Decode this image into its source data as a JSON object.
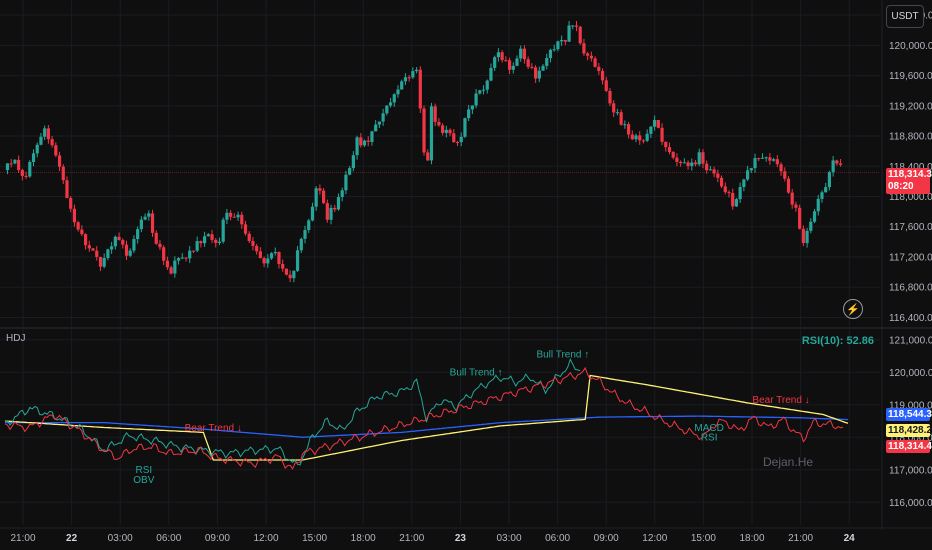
{
  "currency_button": "USDT",
  "indicator_name": "HDJ",
  "rsi_readout": "RSI(10): 52.86",
  "watermark": "Dejan.He",
  "bolt_icon": "lightning-bolt-icon",
  "price_tags": {
    "last_price": "118,314.3",
    "countdown": "08:20",
    "blue": "118,544.3",
    "yellow": "118,428.2",
    "red": "118,314.4"
  },
  "colors": {
    "up": "#26a69a",
    "down": "#f23645",
    "ma_blue": "#2962ff",
    "ma_yellow": "#fff176",
    "trend_green": "#26a69a",
    "trend_red": "#f23645"
  },
  "chart_data": [
    {
      "type": "candlestick",
      "title": "",
      "y_ticks": [
        "120,400.0",
        "120,000.0",
        "119,600.0",
        "119,200.0",
        "118,800.0",
        "118,400.0",
        "118,000.0",
        "117,600.0",
        "117,200.0",
        "116,800.0",
        "116,400.0"
      ],
      "ylim": [
        116300,
        120600
      ],
      "x_ticks": [
        "21:00",
        "22",
        "03:00",
        "06:00",
        "09:00",
        "12:00",
        "15:00",
        "18:00",
        "21:00",
        "23",
        "03:00",
        "06:00",
        "09:00",
        "12:00",
        "15:00",
        "18:00",
        "21:00",
        "24"
      ],
      "last_price": 118314.3,
      "close_path": [
        [
          0,
          118350
        ],
        [
          4,
          118500
        ],
        [
          8,
          118250
        ],
        [
          12,
          118550
        ],
        [
          16,
          118850
        ],
        [
          20,
          118650
        ],
        [
          24,
          118100
        ],
        [
          28,
          117700
        ],
        [
          32,
          117400
        ],
        [
          36,
          117300
        ],
        [
          38,
          117000
        ],
        [
          42,
          117350
        ],
        [
          46,
          117450
        ],
        [
          50,
          117200
        ],
        [
          54,
          117600
        ],
        [
          58,
          117800
        ],
        [
          60,
          117500
        ],
        [
          64,
          117200
        ],
        [
          66,
          116950
        ],
        [
          70,
          117200
        ],
        [
          74,
          117250
        ],
        [
          78,
          117400
        ],
        [
          82,
          117550
        ],
        [
          86,
          117350
        ],
        [
          88,
          117700
        ],
        [
          92,
          117800
        ],
        [
          96,
          117650
        ],
        [
          98,
          117450
        ],
        [
          102,
          117300
        ],
        [
          104,
          117150
        ],
        [
          108,
          117250
        ],
        [
          112,
          117100
        ],
        [
          114,
          116850
        ],
        [
          116,
          117000
        ],
        [
          118,
          117300
        ],
        [
          122,
          117600
        ],
        [
          126,
          118250
        ],
        [
          130,
          117700
        ],
        [
          134,
          117950
        ],
        [
          138,
          118300
        ],
        [
          142,
          118750
        ],
        [
          146,
          118700
        ],
        [
          150,
          119000
        ],
        [
          154,
          119200
        ],
        [
          158,
          119400
        ],
        [
          162,
          119550
        ],
        [
          166,
          119650
        ],
        [
          170,
          118200
        ],
        [
          172,
          119150
        ],
        [
          176,
          118850
        ],
        [
          180,
          118800
        ],
        [
          182,
          118650
        ],
        [
          186,
          119050
        ],
        [
          190,
          119350
        ],
        [
          194,
          119500
        ],
        [
          198,
          119950
        ],
        [
          202,
          119800
        ],
        [
          204,
          119650
        ],
        [
          208,
          119900
        ],
        [
          212,
          119700
        ],
        [
          214,
          119550
        ],
        [
          218,
          119850
        ],
        [
          222,
          120000
        ],
        [
          226,
          120100
        ],
        [
          228,
          120300
        ],
        [
          230,
          120250
        ],
        [
          232,
          120000
        ],
        [
          236,
          119800
        ],
        [
          240,
          119600
        ],
        [
          244,
          119250
        ],
        [
          248,
          119000
        ],
        [
          252,
          118850
        ],
        [
          256,
          118700
        ],
        [
          260,
          118900
        ],
        [
          262,
          119000
        ],
        [
          264,
          118800
        ],
        [
          266,
          118650
        ],
        [
          270,
          118500
        ],
        [
          274,
          118450
        ],
        [
          278,
          118400
        ],
        [
          280,
          118600
        ],
        [
          282,
          118400
        ],
        [
          286,
          118300
        ],
        [
          290,
          118100
        ],
        [
          294,
          117900
        ],
        [
          298,
          118250
        ],
        [
          302,
          118450
        ],
        [
          306,
          118550
        ],
        [
          310,
          118500
        ],
        [
          314,
          118300
        ],
        [
          318,
          117900
        ],
        [
          320,
          117700
        ],
        [
          322,
          117350
        ],
        [
          324,
          117600
        ],
        [
          328,
          117950
        ],
        [
          332,
          118200
        ],
        [
          334,
          118500
        ],
        [
          338,
          118314
        ]
      ]
    },
    {
      "type": "line",
      "title": "HDJ",
      "y_ticks": [
        "121,000.0",
        "120,000.0",
        "119,000.0",
        "118,000.0",
        "117,000.0",
        "116,000.0"
      ],
      "ylim": [
        115300,
        121300
      ],
      "x_ticks": [
        "21:00",
        "22",
        "03:00",
        "06:00",
        "09:00",
        "12:00",
        "15:00",
        "18:00",
        "21:00",
        "23",
        "03:00",
        "06:00",
        "09:00",
        "12:00",
        "15:00",
        "18:00",
        "21:00",
        "24"
      ],
      "series": [
        {
          "color": "#2962ff",
          "values": [
            [
              0,
              118450
            ],
            [
              40,
              118450
            ],
            [
              80,
              118250
            ],
            [
              120,
              118000
            ],
            [
              160,
              118150
            ],
            [
              200,
              118450
            ],
            [
              240,
              118620
            ],
            [
              280,
              118650
            ],
            [
              320,
              118600
            ],
            [
              340,
              118544
            ]
          ]
        },
        {
          "color": "#fff176",
          "values": [
            [
              0,
              118500
            ],
            [
              40,
              118300
            ],
            [
              80,
              118150
            ],
            [
              84,
              117300
            ],
            [
              120,
              117300
            ],
            [
              160,
              117900
            ],
            [
              200,
              118350
            ],
            [
              234,
              118550
            ],
            [
              236,
              119900
            ],
            [
              260,
              119600
            ],
            [
              300,
              119050
            ],
            [
              330,
              118700
            ],
            [
              340,
              118428
            ]
          ]
        },
        {
          "color": "#26a69a",
          "values": [
            [
              0,
              118400
            ],
            [
              10,
              118900
            ],
            [
              20,
              118650
            ],
            [
              30,
              118300
            ],
            [
              40,
              117600
            ],
            [
              50,
              118050
            ],
            [
              60,
              117900
            ],
            [
              70,
              117700
            ],
            [
              80,
              117600
            ],
            [
              90,
              117500
            ],
            [
              100,
              117600
            ],
            [
              110,
              117650
            ],
            [
              118,
              117100
            ],
            [
              124,
              118000
            ],
            [
              130,
              118500
            ],
            [
              136,
              118200
            ],
            [
              142,
              118800
            ],
            [
              150,
              119250
            ],
            [
              160,
              119400
            ],
            [
              166,
              119700
            ],
            [
              170,
              118600
            ],
            [
              176,
              119150
            ],
            [
              182,
              118950
            ],
            [
              188,
              119350
            ],
            [
              194,
              119650
            ],
            [
              200,
              119850
            ],
            [
              206,
              119700
            ],
            [
              212,
              119850
            ],
            [
              218,
              119450
            ],
            [
              224,
              119950
            ],
            [
              228,
              120250
            ],
            [
              232,
              120050
            ]
          ]
        },
        {
          "color": "#f23645",
          "values": [
            [
              0,
              118400
            ],
            [
              10,
              118300
            ],
            [
              20,
              118700
            ],
            [
              30,
              118200
            ],
            [
              40,
              117600
            ],
            [
              46,
              117350
            ],
            [
              50,
              117600
            ],
            [
              56,
              117700
            ],
            [
              60,
              117700
            ],
            [
              66,
              117500
            ],
            [
              72,
              117550
            ],
            [
              78,
              117600
            ],
            [
              84,
              117400
            ],
            [
              90,
              117300
            ],
            [
              100,
              117200
            ],
            [
              110,
              117400
            ],
            [
              116,
              117000
            ],
            [
              120,
              117500
            ],
            [
              234,
              120000
            ],
            [
              240,
              119700
            ],
            [
              246,
              119300
            ],
            [
              252,
              119000
            ],
            [
              258,
              118800
            ],
            [
              264,
              118550
            ],
            [
              270,
              118350
            ],
            [
              276,
              118150
            ],
            [
              282,
              118000
            ],
            [
              286,
              118400
            ],
            [
              290,
              118500
            ],
            [
              296,
              118200
            ],
            [
              302,
              118600
            ],
            [
              308,
              118300
            ],
            [
              314,
              118550
            ],
            [
              318,
              118200
            ],
            [
              322,
              117950
            ],
            [
              326,
              118450
            ],
            [
              332,
              118400
            ],
            [
              338,
              118314
            ]
          ]
        }
      ],
      "annotations": [
        {
          "text": "Bull Trend ↑",
          "color": "#26a69a",
          "x": 225,
          "y": 120450
        },
        {
          "text": "Bull Trend ↑",
          "color": "#26a69a",
          "x": 190,
          "y": 119900
        },
        {
          "text": "Bear Trend ↓",
          "color": "#f23645",
          "x": 84,
          "y": 118200
        },
        {
          "text": "Bear Trend ↓",
          "color": "#f23645",
          "x": 313,
          "y": 119050
        },
        {
          "text": "RSI",
          "color": "#26a69a",
          "x": 56,
          "y": 116900
        },
        {
          "text": "OBV",
          "color": "#26a69a",
          "x": 56,
          "y": 116600
        },
        {
          "text": "MACD",
          "color": "#26a69a",
          "x": 284,
          "y": 118200
        },
        {
          "text": "RSI",
          "color": "#26a69a",
          "x": 284,
          "y": 117900
        }
      ]
    }
  ]
}
